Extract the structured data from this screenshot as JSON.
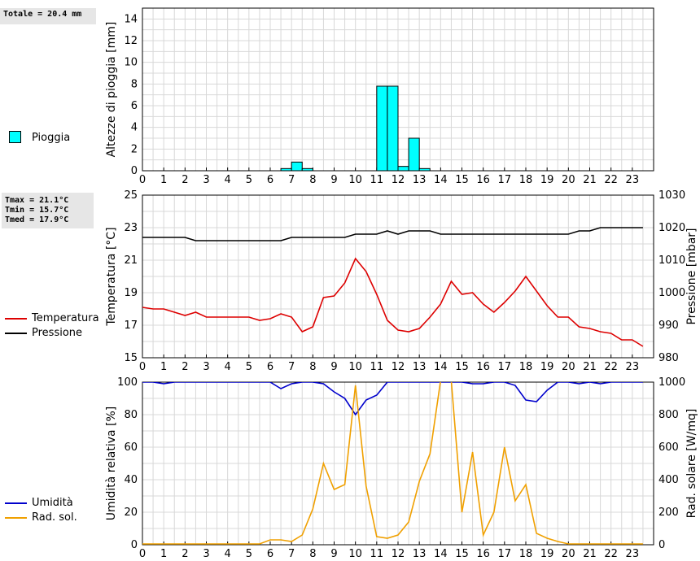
{
  "stats": {
    "rain_total": "Totale = 20.4 mm",
    "tmax": "Tmax = 21.1°C",
    "tmin": "Tmin = 15.7°C",
    "tmed": "Tmed = 17.9°C"
  },
  "legends": {
    "rain": "Pioggia",
    "temperature": "Temperatura",
    "pressure": "Pressione",
    "humidity": "Umidità",
    "radiation": "Rad. sol."
  },
  "colors": {
    "rain_fill": "#00ffff",
    "temperature": "#dd0000",
    "pressure": "#000000",
    "humidity": "#0000cc",
    "radiation": "#f0a000",
    "grid": "#d8d8d8"
  },
  "chart_data": [
    {
      "type": "bar",
      "ylabel": "Altezze di pioggia [mm]",
      "xlim": [
        0,
        24
      ],
      "ylim": [
        0,
        15
      ],
      "x_ticks": [
        "0",
        "1",
        "2",
        "3",
        "4",
        "5",
        "6",
        "7",
        "8",
        "9",
        "10",
        "11",
        "12",
        "13",
        "14",
        "15",
        "16",
        "17",
        "18",
        "19",
        "20",
        "21",
        "22",
        "23"
      ],
      "y_ticks": [
        "0",
        "2",
        "4",
        "6",
        "8",
        "10",
        "12",
        "14"
      ],
      "bar_width": 0.5,
      "series": [
        {
          "name": "Pioggia",
          "x": [
            6.5,
            7.0,
            7.5,
            11.0,
            11.5,
            12.0,
            12.5,
            13.0
          ],
          "values": [
            0.2,
            0.8,
            0.2,
            7.8,
            7.8,
            0.4,
            3.0,
            0.2
          ]
        }
      ]
    },
    {
      "type": "line",
      "ylabel": "Temperatura [°C]",
      "y2label": "Pressione [mbar]",
      "xlim": [
        0,
        24
      ],
      "ylim": [
        15,
        25
      ],
      "y2lim": [
        980,
        1030
      ],
      "x_ticks": [
        "0",
        "1",
        "2",
        "3",
        "4",
        "5",
        "6",
        "7",
        "8",
        "9",
        "10",
        "11",
        "12",
        "13",
        "14",
        "15",
        "16",
        "17",
        "18",
        "19",
        "20",
        "21",
        "22",
        "23"
      ],
      "y_ticks": [
        "15",
        "17",
        "19",
        "21",
        "23",
        "25"
      ],
      "y2_ticks": [
        "980",
        "990",
        "1000",
        "1010",
        "1020",
        "1030"
      ],
      "series": [
        {
          "name": "Temperatura",
          "axis": "left",
          "x": [
            0,
            0.5,
            1,
            1.5,
            2,
            2.5,
            3,
            3.5,
            4,
            4.5,
            5,
            5.5,
            6,
            6.5,
            7,
            7.5,
            8,
            8.5,
            9,
            9.5,
            10,
            10.5,
            11,
            11.5,
            12,
            12.5,
            13,
            13.5,
            14,
            14.5,
            15,
            15.5,
            16,
            16.5,
            17,
            17.5,
            18,
            18.5,
            19,
            19.5,
            20,
            20.5,
            21,
            21.5,
            22,
            22.5,
            23,
            23.5
          ],
          "values": [
            18.1,
            18.0,
            18.0,
            17.8,
            17.6,
            17.8,
            17.5,
            17.5,
            17.5,
            17.5,
            17.5,
            17.3,
            17.4,
            17.7,
            17.5,
            16.6,
            16.9,
            18.7,
            18.8,
            19.6,
            21.1,
            20.3,
            18.9,
            17.3,
            16.7,
            16.6,
            16.8,
            17.5,
            18.3,
            19.7,
            18.9,
            19.0,
            18.3,
            17.8,
            18.4,
            19.1,
            20.0,
            19.1,
            18.2,
            17.5,
            17.5,
            16.9,
            16.8,
            16.6,
            16.5,
            16.1,
            16.1,
            15.7
          ]
        },
        {
          "name": "Pressione",
          "axis": "right",
          "x": [
            0,
            0.5,
            1,
            1.5,
            2,
            2.5,
            3,
            3.5,
            4,
            4.5,
            5,
            5.5,
            6,
            6.5,
            7,
            7.5,
            8,
            8.5,
            9,
            9.5,
            10,
            10.5,
            11,
            11.5,
            12,
            12.5,
            13,
            13.5,
            14,
            14.5,
            15,
            15.5,
            16,
            16.5,
            17,
            17.5,
            18,
            18.5,
            19,
            19.5,
            20,
            20.5,
            21,
            21.5,
            22,
            22.5,
            23,
            23.5
          ],
          "values": [
            1017,
            1017,
            1017,
            1017,
            1017,
            1016,
            1016,
            1016,
            1016,
            1016,
            1016,
            1016,
            1016,
            1016,
            1017,
            1017,
            1017,
            1017,
            1017,
            1017,
            1018,
            1018,
            1018,
            1019,
            1018,
            1019,
            1019,
            1019,
            1018,
            1018,
            1018,
            1018,
            1018,
            1018,
            1018,
            1018,
            1018,
            1018,
            1018,
            1018,
            1018,
            1019,
            1019,
            1020,
            1020,
            1020,
            1020,
            1020
          ]
        }
      ]
    },
    {
      "type": "line",
      "ylabel": "Umidità relativa [%]",
      "y2label": "Rad. solare [W/mq]",
      "xlim": [
        0,
        24
      ],
      "ylim": [
        0,
        100
      ],
      "y2lim": [
        0,
        1000
      ],
      "x_ticks": [
        "0",
        "1",
        "2",
        "3",
        "4",
        "5",
        "6",
        "7",
        "8",
        "9",
        "10",
        "11",
        "12",
        "13",
        "14",
        "15",
        "16",
        "17",
        "18",
        "19",
        "20",
        "21",
        "22",
        "23"
      ],
      "y_ticks": [
        "0",
        "20",
        "40",
        "60",
        "80",
        "100"
      ],
      "y2_ticks": [
        "0",
        "200",
        "400",
        "600",
        "800",
        "1000"
      ],
      "series": [
        {
          "name": "Umidità",
          "axis": "left",
          "x": [
            -0.5,
            0,
            0.5,
            1,
            1.5,
            2,
            2.5,
            3,
            3.5,
            4,
            4.5,
            5,
            5.5,
            6,
            6.5,
            7,
            7.5,
            8,
            8.5,
            9,
            9.5,
            10,
            10.5,
            11,
            11.5,
            12,
            12.5,
            13,
            13.5,
            14,
            14.5,
            15,
            15.5,
            16,
            16.5,
            17,
            17.5,
            18,
            18.5,
            19,
            19.5,
            20,
            20.5,
            21,
            21.5,
            22,
            22.5,
            23,
            23.5
          ],
          "values": [
            100,
            100,
            100,
            99,
            100,
            100,
            100,
            100,
            100,
            100,
            100,
            100,
            100,
            100,
            96,
            99,
            100,
            100,
            99,
            94,
            90,
            80,
            89,
            92,
            100,
            100,
            100,
            100,
            100,
            100,
            100,
            100,
            99,
            99,
            100,
            100,
            98,
            89,
            88,
            95,
            100,
            100,
            99,
            100,
            99,
            100,
            100,
            100,
            100
          ]
        },
        {
          "name": "Rad. sol.",
          "axis": "right",
          "x": [
            0,
            0.5,
            1,
            1.5,
            2,
            2.5,
            3,
            3.5,
            4,
            4.5,
            5,
            5.5,
            6,
            6.5,
            7,
            7.5,
            8,
            8.5,
            9,
            9.5,
            10,
            10.5,
            11,
            11.5,
            12,
            12.5,
            13,
            13.5,
            14,
            14.5,
            15,
            15.5,
            16,
            16.5,
            17,
            17.5,
            18,
            18.5,
            19,
            19.5,
            20,
            20.5,
            21,
            21.5,
            22,
            22.5,
            23,
            23.5
          ],
          "values": [
            5,
            5,
            5,
            5,
            5,
            5,
            5,
            5,
            5,
            5,
            5,
            5,
            30,
            30,
            20,
            60,
            220,
            500,
            340,
            370,
            980,
            360,
            50,
            40,
            60,
            140,
            390,
            560,
            1010,
            1010,
            200,
            570,
            60,
            200,
            600,
            270,
            370,
            70,
            40,
            20,
            5,
            5,
            5,
            5,
            5,
            5,
            5,
            5
          ]
        }
      ]
    }
  ]
}
